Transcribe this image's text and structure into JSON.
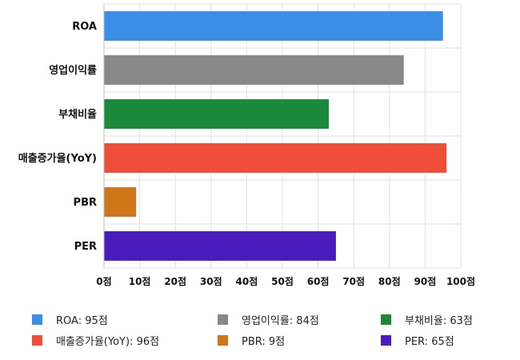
{
  "chart_data": {
    "type": "bar",
    "orientation": "horizontal",
    "categories": [
      "ROA",
      "영업이익률",
      "부채비율",
      "매출증가율(YoY)",
      "PBR",
      "PER"
    ],
    "values": [
      95,
      84,
      63,
      96,
      9,
      65
    ],
    "colors": [
      "#3a8ee6",
      "#888888",
      "#1a8a3a",
      "#ee4e3a",
      "#d0761a",
      "#4a1cbe"
    ],
    "xlim": [
      0,
      100
    ],
    "xticks": [
      0,
      10,
      20,
      30,
      40,
      50,
      60,
      70,
      80,
      90,
      100
    ],
    "tick_suffix": "점",
    "grid": true,
    "legend_position": "bottom",
    "legend": [
      "ROA: 95점",
      "영업이익률: 84점",
      "부채비율: 63점",
      "매출증가율(YoY): 96점",
      "PBR: 9점",
      "PER: 65점"
    ]
  }
}
